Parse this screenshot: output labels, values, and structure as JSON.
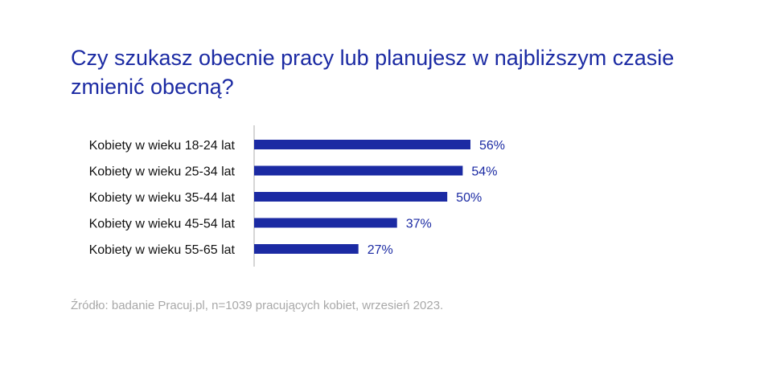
{
  "chart_data": {
    "type": "bar",
    "orientation": "horizontal",
    "title": "Czy szukasz obecnie pracy lub planujesz w najbliższym czasie zmienić obecną?",
    "categories": [
      "Kobiety w wieku 18-24 lat",
      "Kobiety w wieku 25-34 lat",
      "Kobiety w wieku 35-44 lat",
      "Kobiety w wieku 45-54 lat",
      "Kobiety w wieku 55-65 lat"
    ],
    "values": [
      56,
      54,
      50,
      37,
      27
    ],
    "value_labels": [
      "56%",
      "54%",
      "50%",
      "37%",
      "27%"
    ],
    "unit": "%",
    "xlim": [
      0,
      100
    ],
    "grid": false,
    "legend": "none",
    "bar_color": "#1b2aa3"
  },
  "source": "Źródło: badanie Pracuj.pl, n=1039 pracujących kobiet, wrzesień 2023."
}
